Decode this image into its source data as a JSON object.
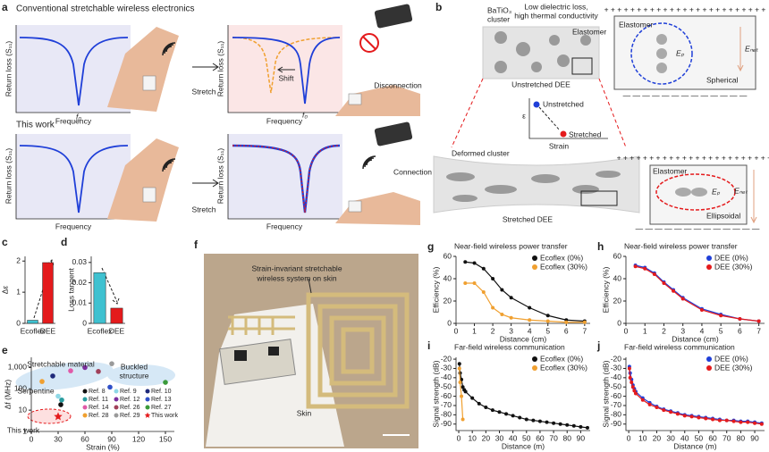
{
  "figure": {
    "panel_labels": [
      "a",
      "b",
      "c",
      "d",
      "e",
      "f",
      "g",
      "h",
      "i",
      "j"
    ],
    "panel_a": {
      "title": "Conventional stretchable wireless electronics",
      "title2": "This work",
      "y_label": "Return loss (S₁₁)",
      "x_label": "Frequency",
      "f0": "f₀",
      "stretch": "Stretch",
      "shift": "Shift",
      "disconnection": "Disconnection",
      "connection": "Connection"
    },
    "panel_b": {
      "cluster_1": "BaTiO₃",
      "cluster_2": "cluster",
      "property_1": "Low dielectric loss,",
      "property_2": "high thermal conductivity",
      "elastomer": "Elastomer",
      "unstretched_dee": "Unstretched DEE",
      "unstretched": "Unstretched",
      "stretched": "Stretched",
      "strain": "Strain",
      "epsilon": "ε",
      "deformed_cluster": "Deformed cluster",
      "stretched_dee": "Stretched DEE",
      "spherical": "Spherical",
      "ellipsoidal": "Ellipsoidal",
      "e_net": "Eₙₑₜ",
      "e_p": "Eₚ",
      "plus_row": "+ + + + + + + + + + + + + + + + + + + + + + + + +",
      "minus_row": "— — — — — — — — — — — — —"
    },
    "panel_f": {
      "caption_1": "Strain-invariant stretchable",
      "caption_2": "wireless system on skin",
      "skin": "Skin"
    }
  },
  "chart_data": [
    {
      "type": "bar",
      "y_label": "Δε",
      "categories": [
        "Ecoflex",
        "DEE"
      ],
      "values": [
        0.1,
        1.95
      ],
      "colors": [
        "#3fc1d0",
        "#e41a1c"
      ],
      "ylim": [
        0,
        2.15
      ],
      "yticks": [
        0,
        1,
        2
      ]
    },
    {
      "type": "bar",
      "y_label": "Loss tangent",
      "categories": [
        "Ecoflex",
        "DEE"
      ],
      "values": [
        0.025,
        0.0075
      ],
      "colors": [
        "#3fc1d0",
        "#e41a1c"
      ],
      "ylim": [
        0,
        0.033
      ],
      "yticks": [
        0,
        0.01,
        0.02,
        0.03
      ]
    },
    {
      "type": "scatter",
      "x_label": "Strain (%)",
      "y_label": "Δf (MHz)",
      "log_y": true,
      "xlim": [
        0,
        160
      ],
      "ylim": [
        1,
        3000
      ],
      "xticks": [
        0,
        30,
        60,
        90,
        120,
        150
      ],
      "yticks": [
        1,
        10,
        100,
        {
          "value": 1000,
          "label": "1,000"
        }
      ],
      "annotations": [
        "Stretchable material",
        "Buckled",
        "structure",
        "Serpentine",
        "This work"
      ],
      "series": [
        {
          "name": "Ref. 8",
          "color": "#111111",
          "x": [
            33
          ],
          "values": [
            18
          ]
        },
        {
          "name": "Ref. 9",
          "color": "#8fd8e6",
          "x": [
            30
          ],
          "values": [
            45
          ]
        },
        {
          "name": "Ref. 10",
          "color": "#1f2a7a",
          "x": [
            24
          ],
          "values": [
            400
          ]
        },
        {
          "name": "Ref. 11",
          "color": "#2a9d9f",
          "x": [
            34
          ],
          "values": [
            30
          ]
        },
        {
          "name": "Ref. 12",
          "color": "#7b2f9e",
          "x": [
            60
          ],
          "values": [
            1000
          ]
        },
        {
          "name": "Ref. 13",
          "color": "#3050c8",
          "x": [
            88
          ],
          "values": [
            120
          ]
        },
        {
          "name": "Ref. 14",
          "color": "#e05aa8",
          "x": [
            44
          ],
          "values": [
            700
          ]
        },
        {
          "name": "Ref. 26",
          "color": "#a0405a",
          "x": [
            75
          ],
          "values": [
            650
          ]
        },
        {
          "name": "Ref. 27",
          "color": "#3a9a3a",
          "x": [
            150
          ],
          "values": [
            200
          ]
        },
        {
          "name": "Ref. 28",
          "color": "#f0a030",
          "x": [
            12
          ],
          "values": [
            220
          ]
        },
        {
          "name": "Ref. 29",
          "color": "#9a9a9a",
          "x": [
            90
          ],
          "values": [
            1500
          ]
        },
        {
          "name": "This work",
          "color": "#e41a1c",
          "marker": "star",
          "x": [
            30
          ],
          "values": [
            5
          ]
        }
      ]
    },
    {
      "type": "line",
      "title": "Near-field wireless power transfer",
      "x_label": "Distance (cm)",
      "y_label": "Efficiency (%)",
      "xlim": [
        0,
        7.3
      ],
      "ylim": [
        0,
        60
      ],
      "xticks": [
        0,
        1,
        2,
        3,
        4,
        5,
        6,
        7
      ],
      "yticks": [
        0,
        20,
        40,
        60
      ],
      "legend": "upper right",
      "x": [
        0.5,
        1,
        1.5,
        2,
        2.5,
        3,
        4,
        5,
        6,
        7
      ],
      "series": [
        {
          "name": "Ecoflex (0%)",
          "color": "#111111",
          "values": [
            55,
            54,
            49,
            40,
            30,
            23,
            14,
            7,
            3,
            2
          ]
        },
        {
          "name": "Ecoflex (30%)",
          "color": "#f0a030",
          "values": [
            36,
            36,
            28,
            14,
            8,
            5,
            3,
            2,
            1,
            1
          ]
        }
      ]
    },
    {
      "type": "line",
      "title": "Near-field wireless power transfer",
      "x_label": "Distance (cm)",
      "y_label": "Efficiency (%)",
      "xlim": [
        0,
        7.3
      ],
      "ylim": [
        0,
        60
      ],
      "xticks": [
        0,
        1,
        2,
        3,
        4,
        5,
        6,
        7
      ],
      "yticks": [
        0,
        20,
        40,
        60
      ],
      "legend": "upper right",
      "x": [
        0.5,
        1,
        1.5,
        2,
        2.5,
        3,
        4,
        5,
        6,
        7
      ],
      "series": [
        {
          "name": "DEE (0%)",
          "color": "#1f3fd8",
          "values": [
            52,
            50,
            45,
            37,
            30,
            23,
            13,
            8,
            4,
            2
          ]
        },
        {
          "name": "DEE (30%)",
          "color": "#e41a1c",
          "values": [
            51,
            49,
            44,
            36,
            29,
            22,
            12,
            7,
            4,
            2
          ]
        }
      ]
    },
    {
      "type": "line",
      "title": "Far-field wireless communication",
      "x_label": "Distance (m)",
      "y_label": "Signal strength (dB)",
      "xlim": [
        -2,
        97
      ],
      "ylim": [
        -97,
        -18
      ],
      "xticks": [
        0,
        10,
        20,
        30,
        40,
        50,
        60,
        70,
        80,
        90
      ],
      "yticks": [
        -90,
        -80,
        -70,
        -60,
        -50,
        -40,
        -30,
        -20
      ],
      "legend": "upper right",
      "series": [
        {
          "name": "Ecoflex (0%)",
          "color": "#111111",
          "x": [
            0.5,
            1,
            2,
            3,
            4,
            5,
            10,
            15,
            20,
            25,
            30,
            35,
            40,
            45,
            50,
            55,
            60,
            65,
            70,
            75,
            80,
            85,
            90,
            95
          ],
          "values": [
            -25,
            -35,
            -42,
            -50,
            -53,
            -55,
            -62,
            -68,
            -72,
            -75,
            -77,
            -79,
            -81,
            -83,
            -85,
            -86,
            -87,
            -88,
            -89,
            -90,
            -91,
            -92,
            -93,
            -94
          ]
        },
        {
          "name": "Ecoflex (30%)",
          "color": "#f0a030",
          "x": [
            0.5,
            1,
            2,
            3
          ],
          "values": [
            -30,
            -45,
            -60,
            -85
          ]
        }
      ]
    },
    {
      "type": "line",
      "title": "Far-field wireless communication",
      "x_label": "Distance (m)",
      "y_label": "Signal strength (dB)",
      "xlim": [
        -2,
        97
      ],
      "ylim": [
        -97,
        -18
      ],
      "xticks": [
        0,
        10,
        20,
        30,
        40,
        50,
        60,
        70,
        80,
        90
      ],
      "yticks": [
        -90,
        -80,
        -70,
        -60,
        -50,
        -40,
        -30,
        -20
      ],
      "legend": "upper right",
      "series": [
        {
          "name": "DEE (0%)",
          "color": "#1f3fd8",
          "x": [
            0.5,
            1,
            2,
            3,
            4,
            5,
            10,
            15,
            20,
            25,
            30,
            35,
            40,
            45,
            50,
            55,
            60,
            65,
            70,
            75,
            80,
            85,
            90,
            95
          ],
          "values": [
            -28,
            -35,
            -42,
            -48,
            -52,
            -55,
            -62,
            -67,
            -71,
            -74,
            -76,
            -78,
            -80,
            -81,
            -82,
            -83,
            -84,
            -85,
            -86,
            -86,
            -87,
            -87,
            -88,
            -89
          ]
        },
        {
          "name": "DEE (30%)",
          "color": "#e41a1c",
          "x": [
            0.5,
            1,
            2,
            3,
            4,
            5,
            10,
            15,
            20,
            25,
            30,
            35,
            40,
            45,
            50,
            55,
            60,
            65,
            70,
            75,
            80,
            85,
            90,
            95
          ],
          "values": [
            -30,
            -40,
            -45,
            -50,
            -54,
            -57,
            -64,
            -69,
            -72,
            -75,
            -77,
            -79,
            -81,
            -82,
            -83,
            -84,
            -85,
            -86,
            -86,
            -87,
            -88,
            -88,
            -89,
            -90
          ]
        }
      ]
    }
  ]
}
